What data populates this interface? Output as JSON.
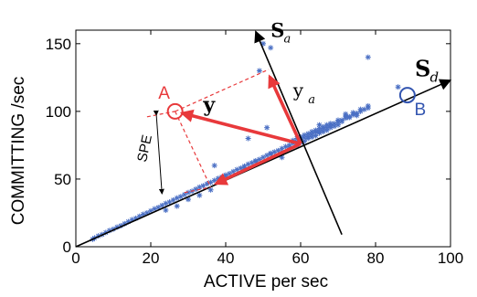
{
  "chart_data": {
    "type": "scatter",
    "xlabel": "ACTIVE per sec",
    "ylabel": "COMMITTING /sec",
    "xlim": [
      0,
      100
    ],
    "ylim": [
      0,
      160
    ],
    "xticks": [
      0,
      20,
      40,
      60,
      80,
      100
    ],
    "yticks": [
      0,
      50,
      100,
      150
    ],
    "grid": false,
    "series": [
      {
        "marker": "star",
        "color": "#4a6fc4",
        "points": [
          [
            4.5,
            5.5
          ],
          [
            5,
            6.5
          ],
          [
            6,
            8
          ],
          [
            7,
            9
          ],
          [
            8,
            10.5
          ],
          [
            9,
            12
          ],
          [
            10,
            13
          ],
          [
            11,
            14.5
          ],
          [
            12,
            15.5
          ],
          [
            13,
            17
          ],
          [
            14,
            18.5
          ],
          [
            15,
            20
          ],
          [
            16,
            21
          ],
          [
            17,
            22.5
          ],
          [
            18,
            24
          ],
          [
            19,
            25
          ],
          [
            20,
            26.5
          ],
          [
            21,
            28
          ],
          [
            22,
            29
          ],
          [
            23,
            30.5
          ],
          [
            24,
            32
          ],
          [
            25,
            33
          ],
          [
            26,
            34.5
          ],
          [
            27,
            36
          ],
          [
            28,
            37
          ],
          [
            29,
            38.5
          ],
          [
            30,
            40
          ],
          [
            31,
            41
          ],
          [
            32,
            42.5
          ],
          [
            33,
            44
          ],
          [
            34,
            45
          ],
          [
            35,
            46.5
          ],
          [
            36,
            47.5
          ],
          [
            37,
            49
          ],
          [
            38,
            50.5
          ],
          [
            39,
            51.5
          ],
          [
            40,
            53
          ],
          [
            41,
            54
          ],
          [
            42,
            55.5
          ],
          [
            43,
            57
          ],
          [
            44,
            58
          ],
          [
            45,
            59.5
          ],
          [
            46,
            61
          ],
          [
            47,
            62
          ],
          [
            48,
            63.5
          ],
          [
            49,
            64.5
          ],
          [
            50,
            66
          ],
          [
            51,
            67.5
          ],
          [
            52,
            68.5
          ],
          [
            53,
            70
          ],
          [
            54,
            71
          ],
          [
            55,
            72.5
          ],
          [
            56,
            74
          ],
          [
            57,
            75
          ],
          [
            58,
            76.5
          ],
          [
            59,
            77.5
          ],
          [
            60,
            79
          ],
          [
            61,
            80.5
          ],
          [
            62,
            81.5
          ],
          [
            63,
            83
          ],
          [
            64,
            84.5
          ],
          [
            65,
            85.5
          ],
          [
            66,
            87
          ],
          [
            67,
            88
          ],
          [
            68,
            89.5
          ],
          [
            69,
            91
          ],
          [
            70,
            92
          ],
          [
            71,
            93.5
          ],
          [
            72,
            95
          ],
          [
            73,
            96
          ],
          [
            74,
            97.5
          ],
          [
            75,
            98.5
          ],
          [
            76,
            100
          ],
          [
            77,
            101.5
          ],
          [
            78,
            102.5
          ],
          [
            55,
            70
          ],
          [
            57,
            73
          ],
          [
            59,
            75
          ],
          [
            60,
            77
          ],
          [
            61,
            78
          ],
          [
            62,
            80
          ],
          [
            63,
            81
          ],
          [
            64,
            82
          ],
          [
            65,
            84
          ],
          [
            66,
            85
          ],
          [
            67,
            86
          ],
          [
            68,
            88
          ],
          [
            69,
            89
          ],
          [
            70,
            90
          ],
          [
            58,
            78.5
          ],
          [
            60,
            81
          ],
          [
            62,
            83.5
          ],
          [
            64,
            86
          ],
          [
            66,
            88.5
          ],
          [
            68,
            91
          ],
          [
            70,
            93.5
          ],
          [
            72,
            96.5
          ],
          [
            74,
            99
          ],
          [
            76,
            101.5
          ],
          [
            71,
            92.5
          ],
          [
            73,
            95.5
          ],
          [
            75,
            97
          ],
          [
            59,
            80
          ],
          [
            61,
            82.5
          ],
          [
            63,
            85
          ],
          [
            65,
            87.5
          ],
          [
            67,
            90
          ],
          [
            39,
            51
          ],
          [
            40,
            52
          ],
          [
            45,
            58.5
          ],
          [
            48,
            63
          ],
          [
            52,
            69
          ],
          [
            50,
            150
          ],
          [
            52,
            147
          ],
          [
            49,
            130
          ],
          [
            51,
            88
          ],
          [
            46,
            80
          ],
          [
            36,
            42
          ],
          [
            33,
            38
          ],
          [
            30,
            35
          ],
          [
            37,
            60
          ],
          [
            55,
            66
          ],
          [
            78,
            140
          ],
          [
            78,
            104
          ],
          [
            86,
            118
          ],
          [
            65,
            90
          ],
          [
            72,
            98
          ],
          [
            24,
            27
          ],
          [
            27,
            30
          ]
        ]
      }
    ],
    "points": {
      "A": {
        "label": "A",
        "x": 26.5,
        "y": 100,
        "color": "#e8393b"
      },
      "B": {
        "label": "B",
        "x": 88.5,
        "y": 112,
        "color": "#3355b0"
      }
    },
    "annotations": {
      "spe": "SPE",
      "y": "y",
      "ya": "y",
      "ya_sub": "a",
      "sa": "S",
      "sa_sub": "a",
      "sd": "S",
      "sd_sub": "d"
    }
  }
}
